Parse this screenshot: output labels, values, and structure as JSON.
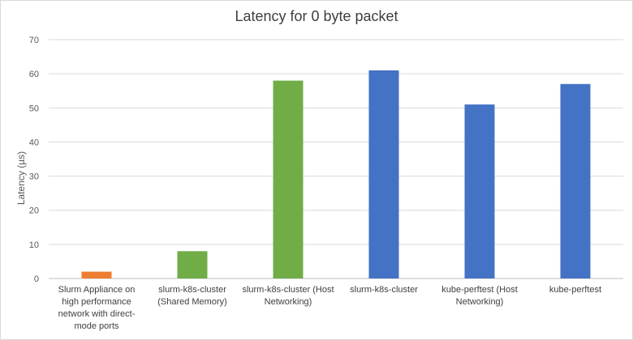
{
  "chart_data": {
    "type": "bar",
    "title": "Latency for 0 byte packet",
    "xlabel": "",
    "ylabel": "Latency (µs)",
    "ylim": [
      0,
      70
    ],
    "yticks": [
      0,
      10,
      20,
      30,
      40,
      50,
      60,
      70
    ],
    "grid": true,
    "legend": "none",
    "categories": [
      "Slurm Appliance on high performance network with direct-mode ports",
      "slurm-k8s-cluster (Shared Memory)",
      "slurm-k8s-cluster (Host Networking)",
      "slurm-k8s-cluster",
      "kube-perftest (Host Networking)",
      "kube-perftest"
    ],
    "category_label_lines": [
      [
        "Slurm Appliance on",
        "high performance",
        "network with direct-",
        "mode ports"
      ],
      [
        "slurm-k8s-cluster",
        "(Shared Memory)"
      ],
      [
        "slurm-k8s-cluster (Host",
        "Networking)"
      ],
      [
        "slurm-k8s-cluster"
      ],
      [
        "kube-perftest (Host",
        "Networking)"
      ],
      [
        "kube-perftest"
      ]
    ],
    "values": [
      2,
      8,
      58,
      61,
      51,
      57
    ],
    "bar_colors": [
      "#ED7D31",
      "#70AD47",
      "#70AD47",
      "#4472C4",
      "#4472C4",
      "#4472C4"
    ],
    "gridline_color": "#d9d9d9",
    "axis_color": "#bfbfbf"
  }
}
